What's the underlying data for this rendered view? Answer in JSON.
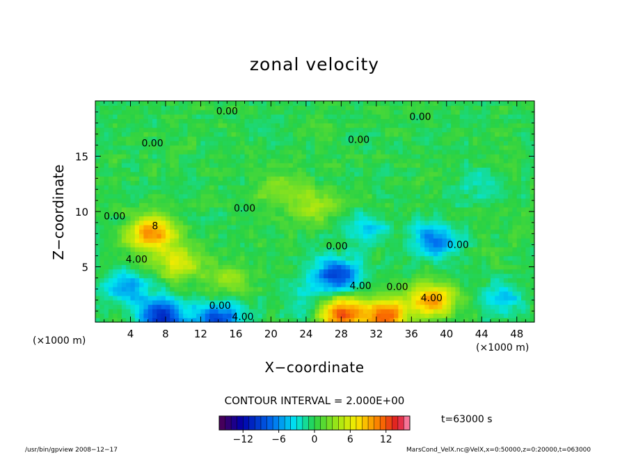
{
  "chart_data": {
    "type": "heatmap",
    "title": "zonal velocity",
    "xlabel": "X−coordinate",
    "ylabel": "Z−coordinate",
    "x_unit": "(×1000 m)",
    "y_unit": "(×1000 m)",
    "xlim": [
      0,
      50
    ],
    "ylim": [
      0,
      20
    ],
    "x_ticks": [
      4,
      8,
      12,
      16,
      20,
      24,
      28,
      32,
      36,
      40,
      44,
      48
    ],
    "y_ticks": [
      5,
      10,
      15
    ],
    "contour_interval": "CONTOUR INTERVAL = 2.000E+00",
    "time": "t=63000 s",
    "colorbar": {
      "range": [
        -16,
        16
      ],
      "ticks": [
        -12,
        -6,
        0,
        6,
        12
      ]
    },
    "contour_labels": [
      {
        "x": 15,
        "y": 19.1,
        "text": "0.00"
      },
      {
        "x": 37,
        "y": 18.6,
        "text": "0.00"
      },
      {
        "x": 6.5,
        "y": 16.2,
        "text": "0.00"
      },
      {
        "x": 30,
        "y": 16.5,
        "text": "0.00"
      },
      {
        "x": 17,
        "y": 10.3,
        "text": "0.00"
      },
      {
        "x": 2.2,
        "y": 9.6,
        "text": "0.00"
      },
      {
        "x": 6.8,
        "y": 8.7,
        "text": "8"
      },
      {
        "x": 4.7,
        "y": 5.7,
        "text": "4.00"
      },
      {
        "x": 27.5,
        "y": 6.9,
        "text": "0.00"
      },
      {
        "x": 41.3,
        "y": 7.0,
        "text": "0.00"
      },
      {
        "x": 30.2,
        "y": 3.3,
        "text": "4.00"
      },
      {
        "x": 34.4,
        "y": 3.2,
        "text": "0.00"
      },
      {
        "x": 38.3,
        "y": 2.2,
        "text": "4.00"
      },
      {
        "x": 14.2,
        "y": 1.5,
        "text": "0.00"
      },
      {
        "x": 16.8,
        "y": 0.5,
        "text": "4.00"
      }
    ],
    "features": [
      {
        "x": 6.5,
        "y": 8,
        "value": 11
      },
      {
        "x": 9.5,
        "y": 5.5,
        "value": 6
      },
      {
        "x": 3.5,
        "y": 3.2,
        "value": -5
      },
      {
        "x": 7.5,
        "y": 0.6,
        "value": -11
      },
      {
        "x": 14,
        "y": 0.3,
        "value": -9
      },
      {
        "x": 27.5,
        "y": 4.3,
        "value": -9
      },
      {
        "x": 38.5,
        "y": 7.5,
        "value": -7
      },
      {
        "x": 31,
        "y": 8.5,
        "value": -4
      },
      {
        "x": 28,
        "y": 0.8,
        "value": 12
      },
      {
        "x": 33,
        "y": 0.6,
        "value": 12
      },
      {
        "x": 38.5,
        "y": 2.0,
        "value": 10
      },
      {
        "x": 24,
        "y": 1.8,
        "value": -3
      },
      {
        "x": 46.5,
        "y": 2.2,
        "value": -4
      },
      {
        "x": 21,
        "y": 12.0,
        "value": 3
      },
      {
        "x": 25,
        "y": 10.5,
        "value": 4
      },
      {
        "x": 15,
        "y": 4.0,
        "value": 3
      },
      {
        "x": 44,
        "y": 12.5,
        "value": -2
      }
    ]
  },
  "footer": {
    "left": "/usr/bin/gpview   2008−12−17",
    "right": "MarsCond_VelX.nc@VelX,x=0:50000,z=0:20000,t=063000"
  }
}
